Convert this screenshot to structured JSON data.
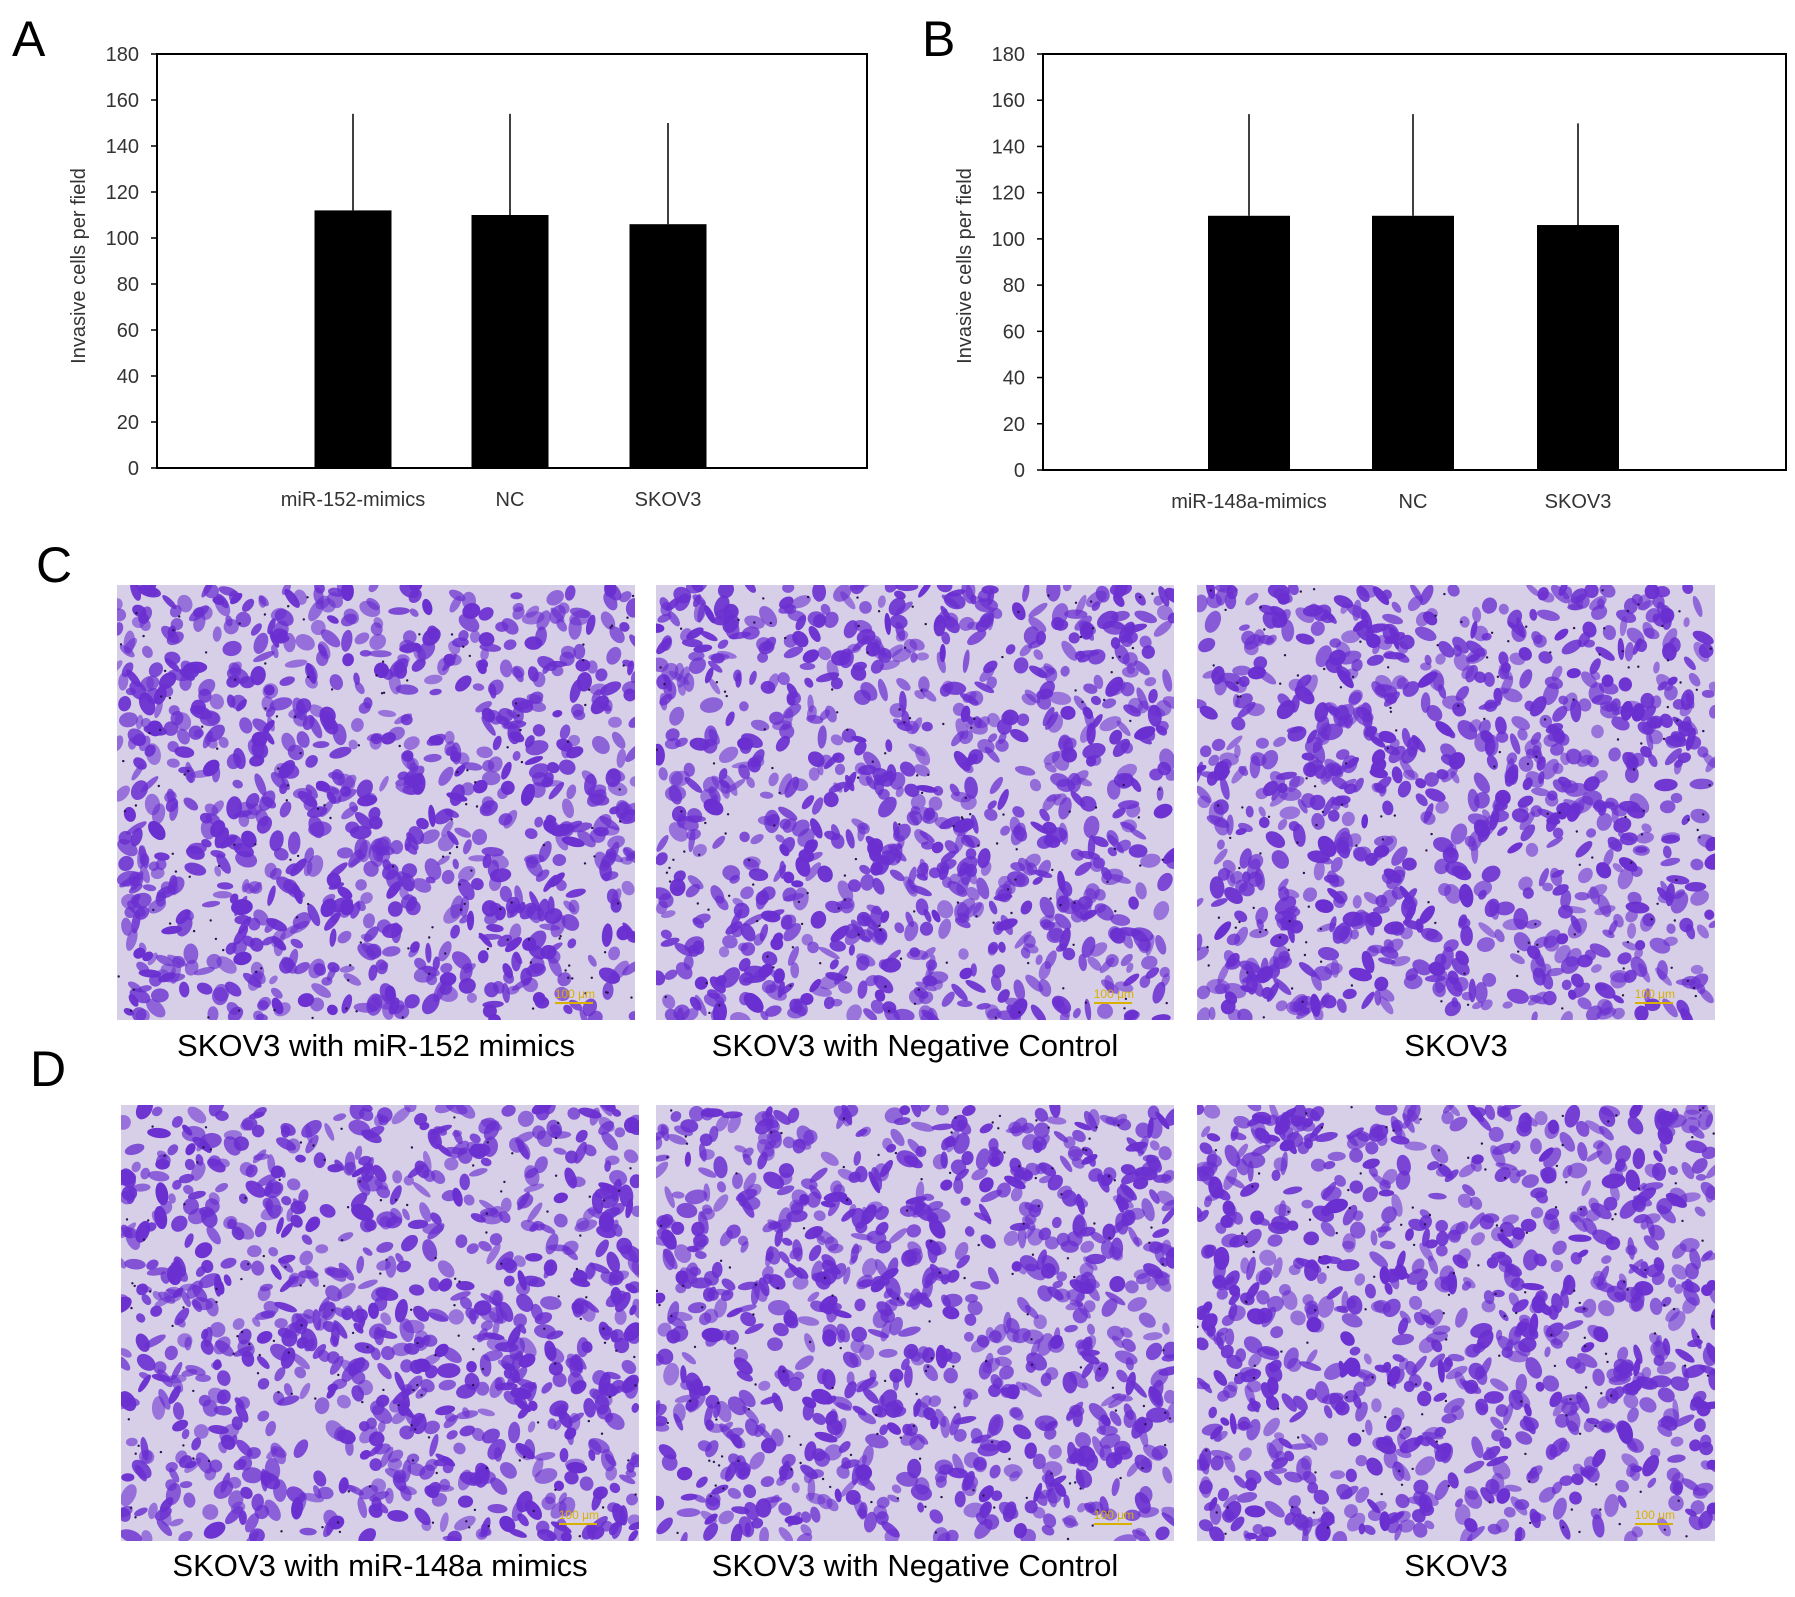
{
  "panels": {
    "A": {
      "letter": "A"
    },
    "B": {
      "letter": "B"
    },
    "C": {
      "letter": "C",
      "captions": [
        "SKOV3 with miR-152 mimics",
        "SKOV3 with Negative Control",
        "SKOV3"
      ]
    },
    "D": {
      "letter": "D",
      "captions": [
        "SKOV3 with miR-148a mimics",
        "SKOV3 with Negative Control",
        "SKOV3"
      ]
    }
  },
  "chart_data": [
    {
      "type": "bar",
      "panel": "A",
      "categories": [
        "miR-152-mimics",
        "NC",
        "SKOV3"
      ],
      "values": [
        112,
        110,
        106
      ],
      "error_upper": [
        154,
        154,
        150
      ],
      "ylabel": "Invasive cells per field",
      "xlabel": "",
      "ylim": [
        0,
        180
      ],
      "yticks": [
        0,
        20,
        40,
        60,
        80,
        100,
        120,
        140,
        160,
        180
      ],
      "bar_color": "#000000",
      "grid": false
    },
    {
      "type": "bar",
      "panel": "B",
      "categories": [
        "miR-148a-mimics",
        "NC",
        "SKOV3"
      ],
      "values": [
        110,
        110,
        106
      ],
      "error_upper": [
        154,
        154,
        150
      ],
      "ylabel": "Invasive cells per field",
      "xlabel": "",
      "ylim": [
        0,
        180
      ],
      "yticks": [
        0,
        20,
        40,
        60,
        80,
        100,
        120,
        140,
        160,
        180
      ],
      "bar_color": "#000000",
      "grid": false
    }
  ],
  "micrographs": {
    "stain_color": "#6a2fd0",
    "background_color": "#d7cfe8",
    "scale_label": "100 μm"
  }
}
